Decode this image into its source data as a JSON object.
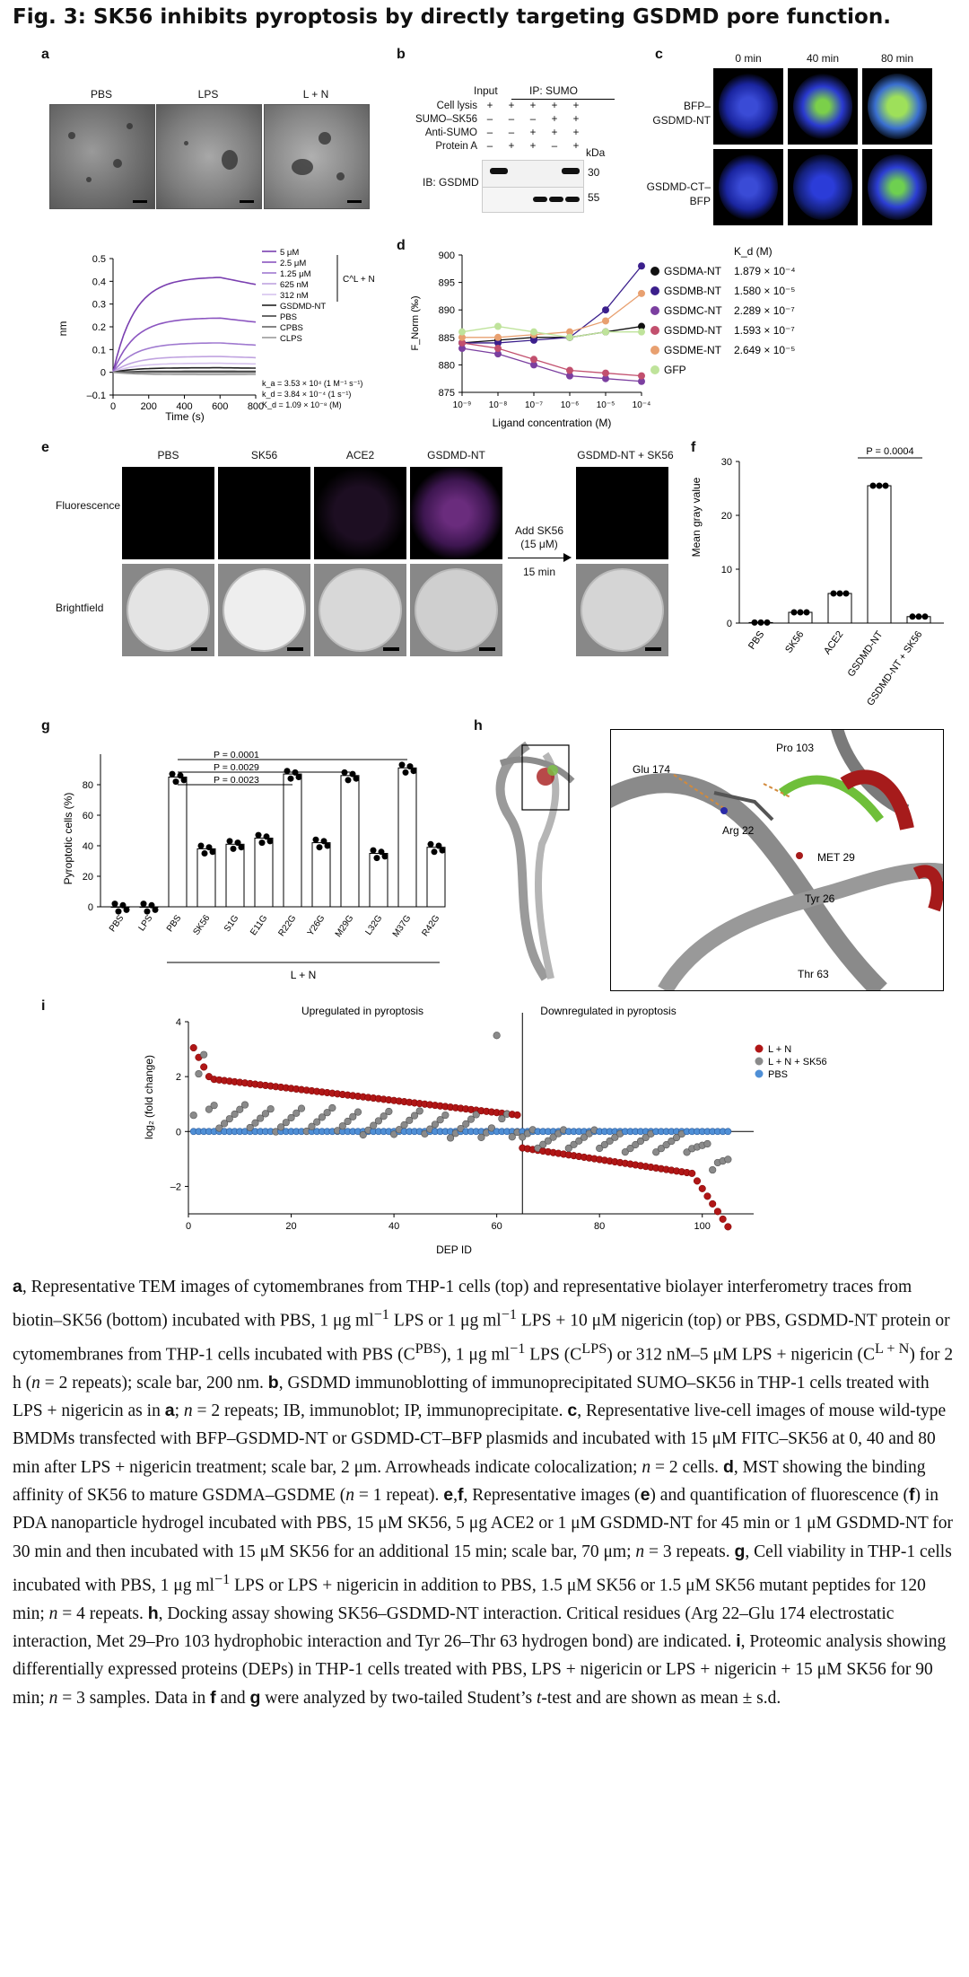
{
  "figure_title": "Fig. 3: SK56 inhibits pyroptosis by directly targeting GSDMD pore function.",
  "panel_labels": {
    "a": "a",
    "b": "b",
    "c": "c",
    "d": "d",
    "e": "e",
    "f": "f",
    "g": "g",
    "h": "h",
    "i": "i"
  },
  "panel_a": {
    "tem_labels": [
      "PBS",
      "LPS",
      "L + N"
    ],
    "bli": {
      "type": "line",
      "ylabel": "nm",
      "xlabel": "Time (s)",
      "yticks": [
        "0.5",
        "0.4",
        "0.3",
        "0.2",
        "0.1",
        "0",
        "–0.1"
      ],
      "xticks": [
        "0",
        "200",
        "400",
        "600",
        "800"
      ],
      "legend": [
        "5 μM",
        "2.5 μM",
        "1.25 μM",
        "625 nM",
        "312 nM",
        "GSDMD-NT",
        "PBS",
        "C^PBS",
        "C^LPS"
      ],
      "bracket_label": "C^L + N",
      "kinetics": [
        "k_a = 3.53 × 10⁴ (1 M⁻¹ s⁻¹)",
        "k_d = 3.84 × 10⁻⁴ (1 s⁻¹)",
        "K_d = 1.09 × 10⁻⁸ (M)"
      ]
    }
  },
  "panel_b": {
    "header_input": "Input",
    "header_ip": "IP: SUMO",
    "rows": [
      {
        "label": "Cell lysis",
        "vals": [
          "+",
          "+",
          "+",
          "+",
          "+"
        ]
      },
      {
        "label": "SUMO–SK56",
        "vals": [
          "–",
          "–",
          "–",
          "+",
          "+"
        ]
      },
      {
        "label": "Anti-SUMO",
        "vals": [
          "–",
          "–",
          "+",
          "+",
          "+"
        ]
      },
      {
        "label": "Protein A",
        "vals": [
          "–",
          "+",
          "+",
          "–",
          "+"
        ]
      }
    ],
    "kda": "kDa",
    "blot_label": "IB: GSDMD",
    "mw": [
      "30",
      "55"
    ]
  },
  "panel_c": {
    "times": [
      "0 min",
      "40 min",
      "80 min"
    ],
    "rows": [
      "BFP–GSDMD-NT",
      "GSDMD-CT–BFP"
    ]
  },
  "panel_d": {
    "type": "scatter",
    "ylabel": "F_Norm (‰)",
    "xlabel": "Ligand concentration (M)",
    "yticks": [
      "900",
      "895",
      "890",
      "885",
      "880",
      "875"
    ],
    "xticks": [
      "10⁻⁹",
      "10⁻⁸",
      "10⁻⁷",
      "10⁻⁶",
      "10⁻⁵",
      "10⁻⁴"
    ],
    "kd_header": "K_d (M)",
    "legend": [
      {
        "name": "GSDMA-NT",
        "kd": "1.879 × 10⁻⁴",
        "color": "#111111"
      },
      {
        "name": "GSDMB-NT",
        "kd": "1.580 × 10⁻⁵",
        "color": "#3b1f8c"
      },
      {
        "name": "GSDMC-NT",
        "kd": "2.289 × 10⁻⁷",
        "color": "#7b3fa0"
      },
      {
        "name": "GSDMD-NT",
        "kd": "1.593 × 10⁻⁷",
        "color": "#c2506e"
      },
      {
        "name": "GSDME-NT",
        "kd": "2.649 × 10⁻⁵",
        "color": "#e8a070"
      },
      {
        "name": "GFP",
        "kd": "",
        "color": "#bfe39b"
      }
    ]
  },
  "panel_e": {
    "columns": [
      "PBS",
      "SK56",
      "ACE2",
      "GSDMD-NT"
    ],
    "after_col": "GSDMD-NT + SK56",
    "rows": [
      "Fluorescence",
      "Brightfield"
    ],
    "arrow_top": "Add SK56\n(15 μM)",
    "arrow_bottom": "15 min"
  },
  "panel_f": {
    "type": "bar",
    "ylabel": "Mean gray value",
    "categories": [
      "PBS",
      "SK56",
      "ACE2",
      "GSDMD-NT",
      "GSDMD-NT + SK56"
    ],
    "values": [
      0.1,
      2,
      5.5,
      25.5,
      1.2
    ],
    "yticks": [
      "0",
      "10",
      "20",
      "30"
    ],
    "ylim": [
      0,
      30
    ],
    "pvalue": "P = 0.0004"
  },
  "panel_g": {
    "type": "bar",
    "ylabel": "Pyroptotic cells (%)",
    "categories": [
      "PBS",
      "LPS",
      "PBS",
      "SK56",
      "S1G",
      "E11G",
      "R22G",
      "Y26G",
      "M29G",
      "L32G",
      "M37G",
      "R42G"
    ],
    "values": [
      0,
      0,
      85,
      38,
      41,
      45,
      87,
      42,
      86,
      35,
      91,
      39
    ],
    "yticks": [
      "0",
      "20",
      "40",
      "60",
      "80"
    ],
    "ylim": [
      0,
      100
    ],
    "group_label": "L + N",
    "pvalues": [
      "P = 0.0001",
      "P = 0.0029",
      "P = 0.0023"
    ]
  },
  "panel_h": {
    "residues": [
      "Glu 174",
      "Pro 103",
      "Arg 22",
      "MET 29",
      "Tyr 26",
      "Thr 63"
    ]
  },
  "panel_i": {
    "type": "scatter",
    "ylabel": "log₂ (fold change)",
    "xlabel": "DEP ID",
    "yticks": [
      "4",
      "2",
      "0",
      "–2"
    ],
    "xticks": [
      "0",
      "20",
      "40",
      "60",
      "80",
      "100"
    ],
    "region_left": "Upregulated in pyroptosis",
    "region_right": "Downregulated in pyroptosis",
    "legend": [
      {
        "name": "L + N",
        "color": "#b01616"
      },
      {
        "name": "L + N + SK56",
        "color": "#8a8a8a"
      },
      {
        "name": "PBS",
        "color": "#4f8fd6"
      }
    ]
  },
  "caption_html": "<b>a</b>, Representative TEM images of cytomembranes from THP-1 cells (top) and representative biolayer interferometry traces from biotin–SK56 (bottom) incubated with PBS, 1 μg ml<sup>−1</sup> LPS or 1 μg ml<sup>−1</sup> LPS + 10 μM nigericin (top) or PBS, GSDMD-NT protein or cytomembranes from THP-1 cells incubated with PBS (C<sup>PBS</sup>), 1 μg ml<sup>−1</sup> LPS (C<sup>LPS</sup>) or 312 nM–5 μM LPS + nigericin (C<sup>L + N</sup>) for 2 h (<i>n</i> = 2 repeats); scale bar, 200 nm. <b>b</b>, GSDMD immunoblotting of immunoprecipitated SUMO–SK56 in THP-1 cells treated with LPS + nigericin as in <b>a</b>; <i>n</i> = 2 repeats; IB, immunoblot; IP, immunoprecipitate. <b>c</b>, Representative live-cell images of mouse wild-type BMDMs transfected with BFP–GSDMD-NT or GSDMD-CT–BFP plasmids and incubated with 15 μM FITC–SK56 at 0, 40 and 80 min after LPS + nigericin treatment; scale bar, 2 μm. Arrowheads indicate colocalization; <i>n</i> = 2 cells. <b>d</b>, MST showing the binding affinity of SK56 to mature GSDMA–GSDME (<i>n</i> = 1 repeat). <b>e</b>,<b>f</b>, Representative images (<b>e</b>) and quantification of fluorescence (<b>f</b>) in PDA nanoparticle hydrogel incubated with PBS, 15 μM SK56, 5 μg ACE2 or 1 μM GSDMD-NT for 45 min or 1 μM GSDMD-NT for 30 min and then incubated with 15 μM SK56 for an additional 15 min; scale bar, 70 μm; <i>n</i> = 3 repeats. <b>g</b>, Cell viability in THP-1 cells incubated with PBS, 1 μg ml<sup>−1</sup> LPS or LPS + nigericin in addition to PBS, 1.5 μM SK56 or 1.5 μM SK56 mutant peptides for 120 min; <i>n</i> = 4 repeats. <b>h</b>, Docking assay showing SK56–GSDMD-NT interaction. Critical residues (Arg 22–Glu 174 electrostatic interaction, Met 29–Pro 103 hydrophobic interaction and Tyr 26–Thr 63 hydrogen bond) are indicated. <b>i</b>, Proteomic analysis showing differentially expressed proteins (DEPs) in THP-1 cells treated with PBS, LPS + nigericin or LPS + nigericin + 15 μM SK56 for 90 min; <i>n</i> = 3 samples. Data in <b>f</b> and <b>g</b> were analyzed by two-tailed Student’s <i>t</i>-test and are shown as mean ± s.d."
}
